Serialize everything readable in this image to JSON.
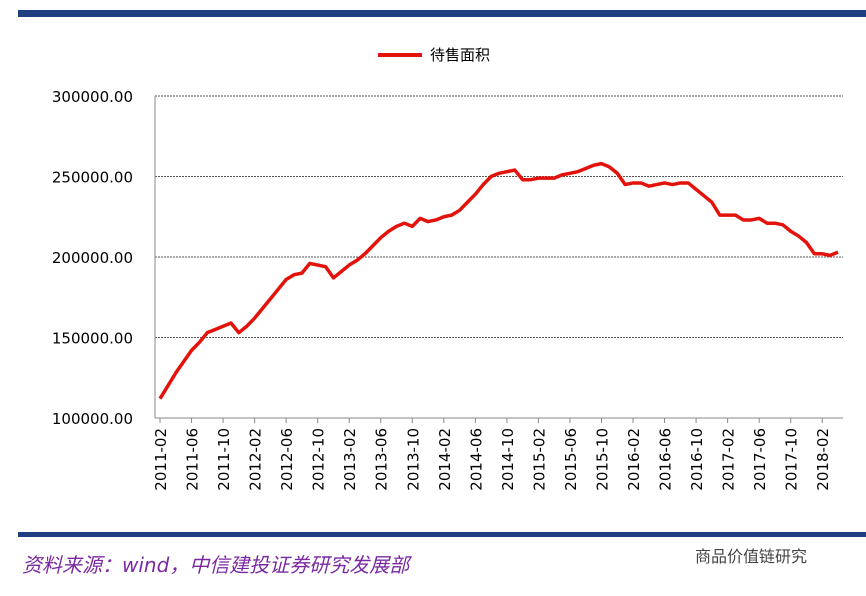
{
  "chart_data": {
    "type": "line",
    "categories": [
      "2011-02",
      null,
      null,
      null,
      "2011-06",
      null,
      null,
      null,
      "2011-10",
      null,
      null,
      null,
      "2012-02",
      null,
      null,
      null,
      "2012-06",
      null,
      null,
      null,
      "2012-10",
      null,
      null,
      null,
      "2013-02",
      null,
      null,
      null,
      "2013-06",
      null,
      null,
      null,
      "2013-10",
      null,
      null,
      null,
      "2014-02",
      null,
      null,
      null,
      "2014-06",
      null,
      null,
      null,
      "2014-10",
      null,
      null,
      null,
      "2015-02",
      null,
      null,
      null,
      "2015-06",
      null,
      null,
      null,
      "2015-10",
      null,
      null,
      null,
      "2016-02",
      null,
      null,
      null,
      "2016-06",
      null,
      null,
      null,
      "2016-10",
      null,
      null,
      null,
      "2017-02",
      null,
      null,
      null,
      "2017-06",
      null,
      null,
      null,
      "2017-10",
      null,
      null,
      null,
      "2018-02",
      null,
      null
    ],
    "series": [
      {
        "name": "待售面积",
        "color": "#e3120b",
        "values": [
          112000,
          120000,
          128000,
          135000,
          142000,
          147000,
          153000,
          155000,
          157000,
          159000,
          153000,
          157000,
          162000,
          168000,
          174000,
          180000,
          186000,
          189000,
          190000,
          196000,
          195000,
          194000,
          187000,
          191000,
          195000,
          198000,
          202000,
          207000,
          212000,
          216000,
          219000,
          221000,
          219000,
          224000,
          222000,
          223000,
          225000,
          226000,
          229000,
          234000,
          239000,
          245000,
          250000,
          252000,
          253000,
          254000,
          248000,
          248000,
          249000,
          249000,
          249000,
          251000,
          252000,
          253000,
          255000,
          257000,
          258000,
          256000,
          252000,
          245000,
          246000,
          246000,
          244000,
          245000,
          246000,
          245000,
          246000,
          246000,
          242000,
          238000,
          234000,
          226000,
          226000,
          226000,
          223000,
          223000,
          224000,
          221000,
          221000,
          220000,
          216000,
          213000,
          209000,
          202000,
          202000,
          201000,
          203000
        ]
      }
    ],
    "ylim": [
      100000,
      300000
    ],
    "yticks": [
      {
        "value": 100000,
        "label": "100000.00"
      },
      {
        "value": 150000,
        "label": "150000.00"
      },
      {
        "value": 200000,
        "label": "200000.00"
      },
      {
        "value": 250000,
        "label": "250000.00"
      },
      {
        "value": 300000,
        "label": "300000.00"
      }
    ],
    "grid": true,
    "source": "资料来源：wind，中信建投证券研究发展部",
    "watermark": "商品价值链研究"
  }
}
